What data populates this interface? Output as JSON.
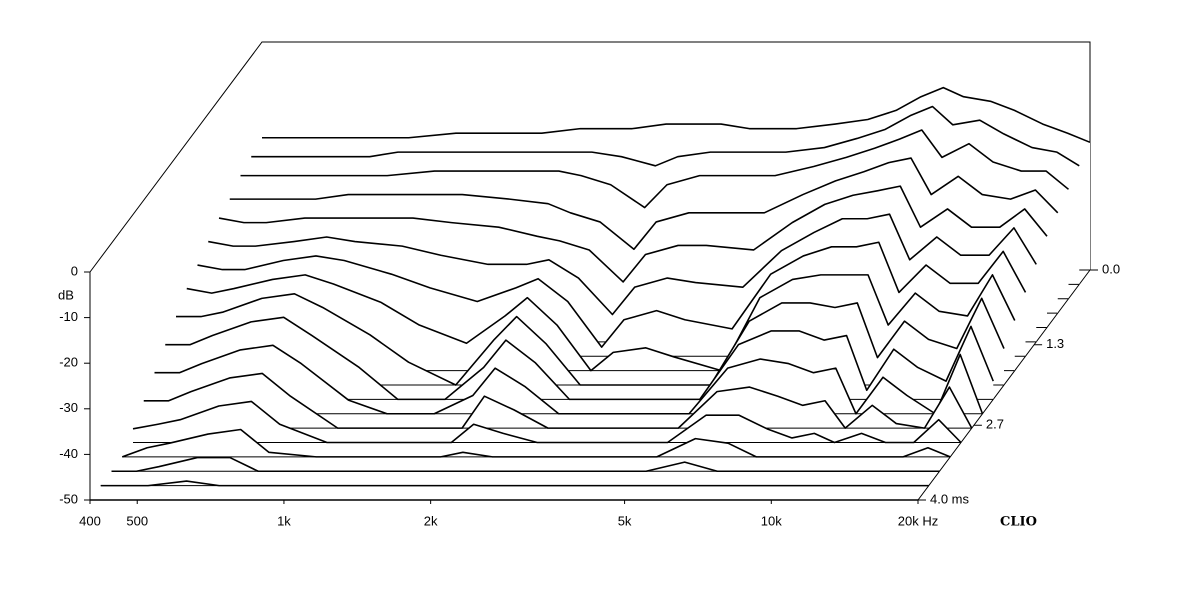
{
  "chart_data": {
    "type": "waterfall",
    "y_label": "dB",
    "watermark": "CLIO",
    "x_log": true,
    "xlim": [
      400,
      20000
    ],
    "xticks": [
      400,
      500,
      {
        "value": 1000,
        "label": "1k"
      },
      {
        "value": 2000,
        "label": "2k"
      },
      {
        "value": 5000,
        "label": "5k"
      },
      {
        "value": 10000,
        "label": "10k"
      },
      {
        "value": 20000,
        "label": "20k Hz"
      }
    ],
    "ylim": [
      -50,
      0
    ],
    "yticks": [
      0,
      -10,
      -20,
      -30,
      -40,
      -50
    ],
    "zlim": [
      0,
      4
    ],
    "zticks": [
      {
        "value": 0,
        "label": "0.0"
      },
      1.3,
      2.7,
      {
        "value": 4,
        "label": "4.0 ms"
      }
    ],
    "line_color": "#000000",
    "fill_color": "#ffffff",
    "x": [
      400,
      450,
      500,
      600,
      700,
      800,
      1000,
      1200,
      1500,
      1800,
      2000,
      2300,
      2700,
      3000,
      3500,
      4000,
      5000,
      6000,
      7000,
      8000,
      9000,
      10000,
      11000,
      12500,
      14000,
      16000,
      18000,
      20000
    ],
    "z": [
      0,
      0.25,
      0.5,
      0.75,
      1,
      1.25,
      1.5,
      1.75,
      2,
      2.25,
      2.5,
      2.75,
      3,
      3.25,
      3.5,
      3.75,
      4
    ],
    "series": [
      {
        "values": [
          -21,
          -21,
          -21,
          -21,
          -21,
          -21,
          -20,
          -20,
          -20,
          -19,
          -19,
          -19,
          -18,
          -18,
          -18,
          -19,
          -19,
          -18,
          -17,
          -15,
          -12,
          -10,
          -12,
          -13,
          -15,
          -18,
          -20,
          -22
        ]
      },
      {
        "values": [
          -22,
          -22,
          -22,
          -22,
          -22,
          -21,
          -21,
          -21,
          -21,
          -21,
          -21,
          -22,
          -24,
          -22,
          -21,
          -21,
          -21,
          -20,
          -18,
          -16,
          -13,
          -11,
          -15,
          -14,
          -17,
          -20,
          -21,
          -24
        ]
      },
      {
        "values": [
          -23,
          -23,
          -23,
          -23,
          -23,
          -23,
          -22,
          -22,
          -22,
          -22,
          -23,
          -25,
          -30,
          -25,
          -23,
          -23,
          -23,
          -21,
          -19,
          -17,
          -15,
          -13,
          -19,
          -16,
          -20,
          -22,
          -22,
          -26
        ]
      },
      {
        "values": [
          -25,
          -25,
          -25,
          -25,
          -24,
          -24,
          -24,
          -24,
          -25,
          -26,
          -28,
          -30,
          -36,
          -30,
          -28,
          -28,
          -28,
          -24,
          -21,
          -19,
          -17,
          -16,
          -24,
          -20,
          -24,
          -25,
          -23,
          -28
        ]
      },
      {
        "values": [
          -26,
          -27,
          -27,
          -26,
          -26,
          -26,
          -26,
          -27,
          -28,
          -30,
          -31,
          -33,
          -40,
          -34,
          -32,
          -32,
          -33,
          -27,
          -23,
          -21,
          -20,
          -19,
          -28,
          -24,
          -28,
          -28,
          -24,
          -30
        ]
      },
      {
        "values": [
          -28,
          -29,
          -29,
          -28,
          -27,
          -28,
          -29,
          -31,
          -33,
          -33,
          -32,
          -36,
          -44,
          -38,
          -36,
          -37,
          -38,
          -30,
          -26,
          -23,
          -23,
          -22,
          -32,
          -27,
          -31,
          -31,
          -25,
          -33
        ]
      },
      {
        "values": [
          -30,
          -31,
          -31,
          -29,
          -28,
          -29,
          -32,
          -35,
          -38,
          -35,
          -33,
          -38,
          -48,
          -42,
          -40,
          -42,
          -44,
          -32,
          -28,
          -26,
          -26,
          -25,
          -36,
          -30,
          -34,
          -34,
          -27,
          -36
        ]
      },
      {
        "values": [
          -32,
          -33,
          -32,
          -30,
          -29,
          -31,
          -35,
          -40,
          -44,
          -38,
          -34,
          -40,
          -50,
          -46,
          -45,
          -47,
          -50,
          -34,
          -30,
          -29,
          -29,
          -29,
          -40,
          -33,
          -37,
          -38,
          -29,
          -39
        ]
      },
      {
        "values": [
          -35,
          -35,
          -34,
          -31,
          -30,
          -33,
          -39,
          -45,
          -50,
          -40,
          -35,
          -41,
          -50,
          -50,
          -50,
          -50,
          -50,
          -36,
          -32,
          -32,
          -33,
          -32,
          -44,
          -36,
          -40,
          -42,
          -31,
          -42
        ]
      },
      {
        "values": [
          -38,
          -38,
          -36,
          -33,
          -32,
          -36,
          -43,
          -50,
          -50,
          -43,
          -37,
          -42,
          -50,
          -50,
          -50,
          -50,
          -50,
          -38,
          -35,
          -35,
          -37,
          -36,
          -48,
          -39,
          -43,
          -46,
          -34,
          -46
        ]
      },
      {
        "values": [
          -41,
          -41,
          -39,
          -36,
          -35,
          -39,
          -47,
          -50,
          -50,
          -46,
          -40,
          -44,
          -50,
          -50,
          -50,
          -50,
          -50,
          -40,
          -38,
          -39,
          -41,
          -40,
          -50,
          -42,
          -46,
          -50,
          -37,
          -50
        ]
      },
      {
        "values": [
          -44,
          -44,
          -42,
          -39,
          -38,
          -43,
          -50,
          -50,
          -50,
          -50,
          -43,
          -46,
          -50,
          -50,
          -50,
          -50,
          -50,
          -42,
          -41,
          -43,
          -45,
          -44,
          -50,
          -45,
          -49,
          -50,
          -41,
          -50
        ]
      },
      {
        "values": [
          -47,
          -46,
          -45,
          -42,
          -41,
          -46,
          -50,
          -50,
          -50,
          -50,
          -46,
          -48,
          -50,
          -50,
          -50,
          -50,
          -50,
          -44,
          -44,
          -47,
          -49,
          -48,
          -50,
          -48,
          -50,
          -50,
          -45,
          -50
        ]
      },
      {
        "values": [
          -50,
          -48,
          -47,
          -45,
          -44,
          -49,
          -50,
          -50,
          -50,
          -50,
          -49,
          -50,
          -50,
          -50,
          -50,
          -50,
          -50,
          -46,
          -47,
          -50,
          -50,
          -50,
          -50,
          -50,
          -50,
          -50,
          -48,
          -50
        ]
      },
      {
        "values": [
          -50,
          -50,
          -49,
          -47,
          -47,
          -50,
          -50,
          -50,
          -50,
          -50,
          -50,
          -50,
          -50,
          -50,
          -50,
          -50,
          -50,
          -48,
          -50,
          -50,
          -50,
          -50,
          -50,
          -50,
          -50,
          -50,
          -50,
          -50
        ]
      },
      {
        "values": [
          -50,
          -50,
          -50,
          -49,
          -50,
          -50,
          -50,
          -50,
          -50,
          -50,
          -50,
          -50,
          -50,
          -50,
          -50,
          -50,
          -50,
          -50,
          -50,
          -50,
          -50,
          -50,
          -50,
          -50,
          -50,
          -50,
          -50,
          -50
        ]
      },
      {
        "values": [
          -50,
          -50,
          -50,
          -50,
          -50,
          -50,
          -50,
          -50,
          -50,
          -50,
          -50,
          -50,
          -50,
          -50,
          -50,
          -50,
          -50,
          -50,
          -50,
          -50,
          -50,
          -50,
          -50,
          -50,
          -50,
          -50,
          -50,
          -50
        ]
      }
    ]
  }
}
